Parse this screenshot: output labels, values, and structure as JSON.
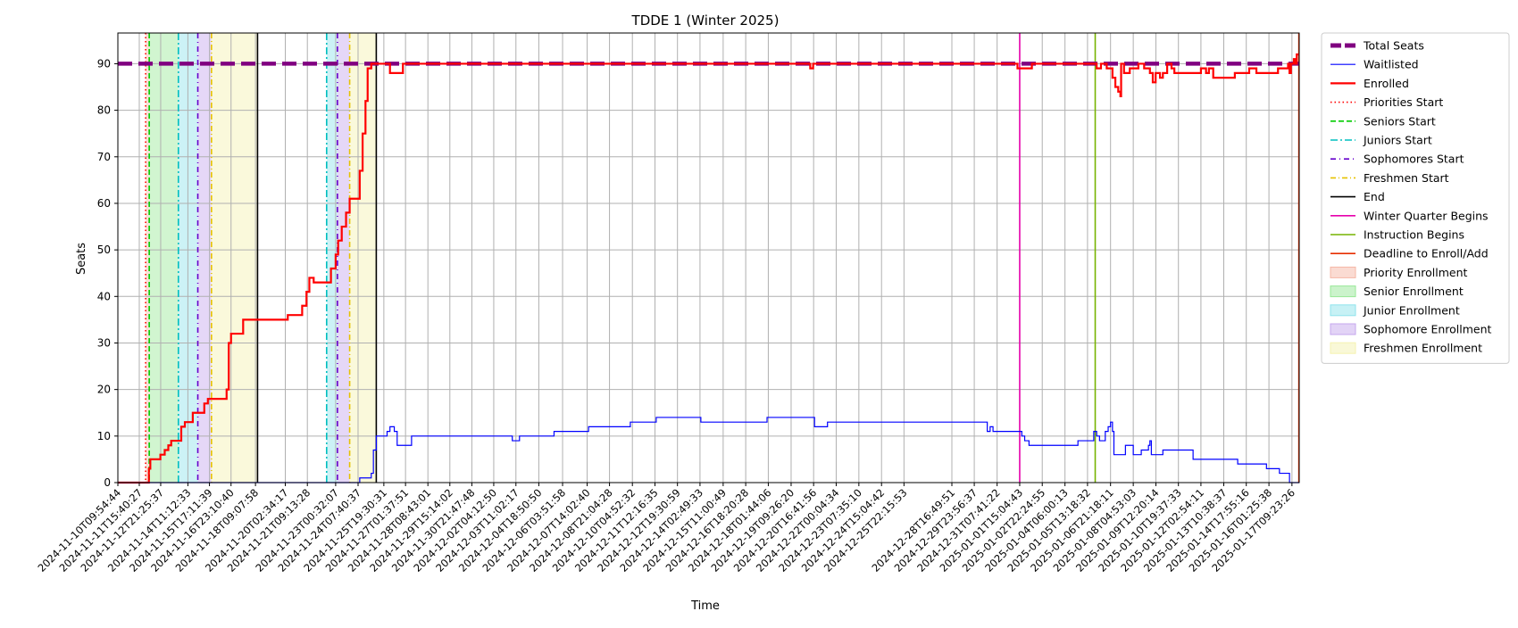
{
  "chart_data": {
    "type": "line",
    "title": "TDDE 1 (Winter 2025)",
    "xlabel": "Time",
    "ylabel": "Seats",
    "ylim": [
      0,
      96.6
    ],
    "yticks": [
      0,
      10,
      20,
      30,
      40,
      50,
      60,
      70,
      80,
      90
    ],
    "grid": true,
    "legend_position": "outside-right-top",
    "xlim": [
      "2024-11-10T09:54:44",
      "2025-01-17T19:30:00"
    ],
    "xtick_labels": [
      "2024-11-10T09:54:44",
      "2024-11-11T15:40:27",
      "2024-11-12T21:25:37",
      "2024-11-14T11:12:33",
      "2024-11-15T17:11:39",
      "2024-11-16T23:10:40",
      "2024-11-18T09:07:58",
      "2024-11-20T02:34:17",
      "2024-11-21T09:13:28",
      "2024-11-23T00:32:07",
      "2024-11-24T07:40:37",
      "2024-11-25T19:30:31",
      "2024-11-27T01:37:51",
      "2024-11-28T08:43:01",
      "2024-11-29T15:14:02",
      "2024-11-30T21:47:48",
      "2024-12-02T04:12:50",
      "2024-12-03T11:02:17",
      "2024-12-04T18:50:50",
      "2024-12-06T03:51:58",
      "2024-12-07T14:02:40",
      "2024-12-08T21:04:28",
      "2024-12-10T04:52:32",
      "2024-12-11T12:16:35",
      "2024-12-12T19:30:59",
      "2024-12-14T02:49:33",
      "2024-12-15T11:00:49",
      "2024-12-16T18:20:28",
      "2024-12-18T01:44:06",
      "2024-12-19T09:26:20",
      "2024-12-20T16:41:56",
      "2024-12-22T00:04:34",
      "2024-12-23T07:35:10",
      "2024-12-24T15:04:42",
      "2024-12-25T22:15:53",
      "2024-12-28T16:49:51",
      "2024-12-29T23:56:37",
      "2024-12-31T07:41:22",
      "2025-01-01T15:04:43",
      "2025-01-02T22:24:55",
      "2025-01-04T06:00:13",
      "2025-01-05T13:18:32",
      "2025-01-06T21:18:11",
      "2025-01-08T04:53:03",
      "2025-01-09T12:20:14",
      "2025-01-10T19:37:33",
      "2025-01-12T02:54:11",
      "2025-01-13T10:38:37",
      "2025-01-14T17:55:16",
      "2025-01-16T01:25:38",
      "2025-01-17T09:23:26"
    ],
    "total_seats": {
      "name": "Total Seats",
      "color": "#800080",
      "value": 90
    },
    "series": [
      {
        "name": "Enrolled",
        "color": "#ff0000",
        "points": [
          [
            "2024-11-10T09:54:44",
            0
          ],
          [
            "2024-11-12T02:00:00",
            0
          ],
          [
            "2024-11-12T05:00:00",
            3
          ],
          [
            "2024-11-12T07:00:00",
            5
          ],
          [
            "2024-11-12T18:00:00",
            5
          ],
          [
            "2024-11-12T21:00:00",
            6
          ],
          [
            "2024-11-13T03:00:00",
            7
          ],
          [
            "2024-11-13T08:00:00",
            8
          ],
          [
            "2024-11-13T12:00:00",
            9
          ],
          [
            "2024-11-13T22:00:00",
            9
          ],
          [
            "2024-11-14T02:00:00",
            12
          ],
          [
            "2024-11-14T07:00:00",
            13
          ],
          [
            "2024-11-14T14:00:00",
            13
          ],
          [
            "2024-11-14T18:00:00",
            15
          ],
          [
            "2024-11-15T07:00:00",
            15
          ],
          [
            "2024-11-15T10:00:00",
            17
          ],
          [
            "2024-11-15T15:00:00",
            18
          ],
          [
            "2024-11-16T14:00:00",
            18
          ],
          [
            "2024-11-16T17:00:00",
            20
          ],
          [
            "2024-11-16T20:00:00",
            30
          ],
          [
            "2024-11-16T23:10:40",
            32
          ],
          [
            "2024-11-17T12:00:00",
            32
          ],
          [
            "2024-11-17T16:00:00",
            35
          ],
          [
            "2024-11-19T22:00:00",
            35
          ],
          [
            "2024-11-20T02:34:17",
            35
          ],
          [
            "2024-11-20T06:00:00",
            36
          ],
          [
            "2024-11-20T22:00:00",
            36
          ],
          [
            "2024-11-21T02:00:00",
            38
          ],
          [
            "2024-11-21T08:00:00",
            41
          ],
          [
            "2024-11-21T12:00:00",
            44
          ],
          [
            "2024-11-21T18:00:00",
            43
          ],
          [
            "2024-11-22T15:00:00",
            43
          ],
          [
            "2024-11-22T18:00:00",
            46
          ],
          [
            "2024-11-23T00:32:07",
            49
          ],
          [
            "2024-11-23T04:00:00",
            52
          ],
          [
            "2024-11-23T09:00:00",
            55
          ],
          [
            "2024-11-23T15:00:00",
            58
          ],
          [
            "2024-11-23T20:00:00",
            61
          ],
          [
            "2024-11-24T07:40:37",
            61
          ],
          [
            "2024-11-24T10:00:00",
            67
          ],
          [
            "2024-11-24T14:00:00",
            75
          ],
          [
            "2024-11-24T18:00:00",
            82
          ],
          [
            "2024-11-24T21:00:00",
            89
          ],
          [
            "2024-11-25T02:00:00",
            90
          ],
          [
            "2024-11-25T19:30:31",
            90
          ],
          [
            "2024-11-26T04:00:00",
            88
          ],
          [
            "2024-11-26T18:00:00",
            88
          ],
          [
            "2024-11-26T22:00:00",
            90
          ],
          [
            "2024-12-20T10:00:00",
            90
          ],
          [
            "2024-12-20T12:00:00",
            89
          ],
          [
            "2024-12-20T16:00:00",
            90
          ],
          [
            "2025-01-01T10:00:00",
            90
          ],
          [
            "2025-01-01T12:00:00",
            89
          ],
          [
            "2025-01-02T06:00:00",
            89
          ],
          [
            "2025-01-02T08:00:00",
            90
          ],
          [
            "2025-01-06T00:00:00",
            90
          ],
          [
            "2025-01-06T02:00:00",
            89
          ],
          [
            "2025-01-06T08:00:00",
            90
          ],
          [
            "2025-01-06T12:00:00",
            90
          ],
          [
            "2025-01-06T16:00:00",
            89
          ],
          [
            "2025-01-07T00:00:00",
            87
          ],
          [
            "2025-01-07T04:00:00",
            85
          ],
          [
            "2025-01-07T08:00:00",
            84
          ],
          [
            "2025-01-07T11:00:00",
            83
          ],
          [
            "2025-01-07T12:00:00",
            90
          ],
          [
            "2025-01-07T16:00:00",
            88
          ],
          [
            "2025-01-08T00:00:00",
            89
          ],
          [
            "2025-01-08T08:00:00",
            89
          ],
          [
            "2025-01-08T12:00:00",
            90
          ],
          [
            "2025-01-08T20:00:00",
            89
          ],
          [
            "2025-01-09T04:00:00",
            88
          ],
          [
            "2025-01-09T08:00:00",
            86
          ],
          [
            "2025-01-09T12:00:00",
            88
          ],
          [
            "2025-01-09T18:00:00",
            87
          ],
          [
            "2025-01-09T22:00:00",
            88
          ],
          [
            "2025-01-10T04:00:00",
            90
          ],
          [
            "2025-01-10T10:00:00",
            89
          ],
          [
            "2025-01-10T14:00:00",
            88
          ],
          [
            "2025-01-11T22:00:00",
            88
          ],
          [
            "2025-01-12T02:54:11",
            89
          ],
          [
            "2025-01-12T10:00:00",
            88
          ],
          [
            "2025-01-12T14:00:00",
            89
          ],
          [
            "2025-01-12T20:00:00",
            87
          ],
          [
            "2025-01-13T22:00:00",
            87
          ],
          [
            "2025-01-14T02:00:00",
            88
          ],
          [
            "2025-01-14T17:55:16",
            88
          ],
          [
            "2025-01-14T22:00:00",
            89
          ],
          [
            "2025-01-15T08:00:00",
            88
          ],
          [
            "2025-01-16T10:00:00",
            88
          ],
          [
            "2025-01-16T14:00:00",
            89
          ],
          [
            "2025-01-17T02:00:00",
            89
          ],
          [
            "2025-01-17T04:00:00",
            90
          ],
          [
            "2025-01-17T06:00:00",
            88
          ],
          [
            "2025-01-17T08:00:00",
            90
          ],
          [
            "2025-01-17T12:00:00",
            91
          ],
          [
            "2025-01-17T14:00:00",
            90
          ],
          [
            "2025-01-17T16:00:00",
            92
          ],
          [
            "2025-01-17T19:30:00",
            92
          ]
        ]
      },
      {
        "name": "Waitlisted",
        "color": "#0000ff",
        "points": [
          [
            "2024-11-10T09:54:44",
            0
          ],
          [
            "2024-11-24T08:00:00",
            0
          ],
          [
            "2024-11-24T10:00:00",
            1
          ],
          [
            "2024-11-24T22:00:00",
            1
          ],
          [
            "2024-11-25T02:00:00",
            2
          ],
          [
            "2024-11-25T05:00:00",
            7
          ],
          [
            "2024-11-25T09:00:00",
            10
          ],
          [
            "2024-11-25T19:30:31",
            10
          ],
          [
            "2024-11-26T00:00:00",
            11
          ],
          [
            "2024-11-26T04:00:00",
            12
          ],
          [
            "2024-11-26T10:00:00",
            11
          ],
          [
            "2024-11-26T14:00:00",
            8
          ],
          [
            "2024-11-27T08:00:00",
            8
          ],
          [
            "2024-11-27T10:00:00",
            10
          ],
          [
            "2024-12-03T04:00:00",
            10
          ],
          [
            "2024-12-03T06:00:00",
            9
          ],
          [
            "2024-12-03T14:00:00",
            9
          ],
          [
            "2024-12-03T16:00:00",
            10
          ],
          [
            "2024-12-05T14:00:00",
            10
          ],
          [
            "2024-12-05T16:00:00",
            11
          ],
          [
            "2024-12-07T14:00:00",
            11
          ],
          [
            "2024-12-07T16:00:00",
            12
          ],
          [
            "2024-12-09T22:00:00",
            12
          ],
          [
            "2024-12-10T02:00:00",
            13
          ],
          [
            "2024-12-11T12:16:35",
            13
          ],
          [
            "2024-12-11T14:00:00",
            14
          ],
          [
            "2024-12-14T02:49:33",
            14
          ],
          [
            "2024-12-14T04:00:00",
            13
          ],
          [
            "2024-12-17T22:00:00",
            13
          ],
          [
            "2024-12-18T00:00:00",
            14
          ],
          [
            "2024-12-20T16:41:56",
            14
          ],
          [
            "2024-12-20T18:00:00",
            12
          ],
          [
            "2024-12-21T10:00:00",
            12
          ],
          [
            "2024-12-21T12:00:00",
            13
          ],
          [
            "2024-12-30T16:00:00",
            13
          ],
          [
            "2024-12-30T18:00:00",
            11
          ],
          [
            "2024-12-30T22:00:00",
            12
          ],
          [
            "2024-12-31T02:00:00",
            11
          ],
          [
            "2025-01-01T15:04:43",
            11
          ],
          [
            "2025-01-01T18:00:00",
            10
          ],
          [
            "2025-01-01T22:00:00",
            9
          ],
          [
            "2025-01-02T04:00:00",
            8
          ],
          [
            "2025-01-04T22:00:00",
            8
          ],
          [
            "2025-01-05T00:00:00",
            9
          ],
          [
            "2025-01-05T20:00:00",
            9
          ],
          [
            "2025-01-05T22:00:00",
            11
          ],
          [
            "2025-01-06T02:00:00",
            10
          ],
          [
            "2025-01-06T06:00:00",
            9
          ],
          [
            "2025-01-06T10:00:00",
            9
          ],
          [
            "2025-01-06T14:00:00",
            11
          ],
          [
            "2025-01-06T18:00:00",
            12
          ],
          [
            "2025-01-06T21:18:11",
            13
          ],
          [
            "2025-01-07T00:00:00",
            11
          ],
          [
            "2025-01-07T02:00:00",
            6
          ],
          [
            "2025-01-07T14:00:00",
            6
          ],
          [
            "2025-01-07T18:00:00",
            8
          ],
          [
            "2025-01-08T00:00:00",
            8
          ],
          [
            "2025-01-08T04:53:03",
            6
          ],
          [
            "2025-01-08T12:00:00",
            6
          ],
          [
            "2025-01-08T16:00:00",
            7
          ],
          [
            "2025-01-08T22:00:00",
            7
          ],
          [
            "2025-01-09T02:00:00",
            8
          ],
          [
            "2025-01-09T04:00:00",
            9
          ],
          [
            "2025-01-09T06:00:00",
            6
          ],
          [
            "2025-01-09T18:00:00",
            6
          ],
          [
            "2025-01-09T22:00:00",
            7
          ],
          [
            "2025-01-11T14:00:00",
            7
          ],
          [
            "2025-01-11T16:00:00",
            5
          ],
          [
            "2025-01-14T04:00:00",
            5
          ],
          [
            "2025-01-14T06:00:00",
            4
          ],
          [
            "2025-01-15T20:00:00",
            4
          ],
          [
            "2025-01-15T22:00:00",
            3
          ],
          [
            "2025-01-16T14:00:00",
            3
          ],
          [
            "2025-01-16T16:00:00",
            2
          ],
          [
            "2025-01-17T04:00:00",
            2
          ],
          [
            "2025-01-17T06:00:00",
            0
          ],
          [
            "2025-01-17T19:30:00",
            0
          ]
        ]
      }
    ],
    "enrollment_periods": [
      {
        "name": "Priority Enrollment",
        "color": "#f5b7a5",
        "ranges": [
          [
            "2024-11-12T00:30:00",
            "2024-11-12T05:30:00"
          ]
        ]
      },
      {
        "name": "Senior Enrollment",
        "color": "#98e897",
        "ranges": [
          [
            "2024-11-12T05:30:00",
            "2024-11-13T22:00:00"
          ]
        ]
      },
      {
        "name": "Junior Enrollment",
        "color": "#8fe3ec",
        "ranges": [
          [
            "2024-11-13T22:00:00",
            "2024-11-15T01:00:00"
          ],
          [
            "2024-11-22T12:00:00",
            "2024-11-23T03:00:00"
          ]
        ]
      },
      {
        "name": "Sophomore Enrollment",
        "color": "#c5a7ee",
        "ranges": [
          [
            "2024-11-15T01:00:00",
            "2024-11-15T20:00:00"
          ],
          [
            "2024-11-23T03:00:00",
            "2024-11-23T20:00:00"
          ]
        ]
      },
      {
        "name": "Freshmen Enrollment",
        "color": "#f4f2b0",
        "ranges": [
          [
            "2024-11-15T20:00:00",
            "2024-11-18T12:00:00"
          ],
          [
            "2024-11-23T20:00:00",
            "2024-11-25T09:00:00"
          ]
        ]
      }
    ],
    "markers": [
      {
        "name": "Priorities Start",
        "color": "#ff0000",
        "dash": "1.5,3",
        "times": [
          "2024-11-12T00:30:00"
        ]
      },
      {
        "name": "Seniors Start",
        "color": "#00cc00",
        "dash": "6,3",
        "times": [
          "2024-11-12T05:30:00"
        ]
      },
      {
        "name": "Juniors Start",
        "color": "#00bfbf",
        "dash": "8,3,2,3",
        "times": [
          "2024-11-13T22:00:00",
          "2024-11-22T12:00:00"
        ]
      },
      {
        "name": "Sophomores Start",
        "color": "#6600cc",
        "dash": "6,4,1,4",
        "times": [
          "2024-11-15T01:00:00",
          "2024-11-23T03:00:00"
        ]
      },
      {
        "name": "Freshmen Start",
        "color": "#e6c200",
        "dash": "6,3,1,3",
        "times": [
          "2024-11-15T20:00:00",
          "2024-11-23T20:00:00"
        ]
      },
      {
        "name": "End",
        "color": "#000000",
        "dash": "",
        "times": [
          "2024-11-18T12:00:00",
          "2024-11-25T09:00:00"
        ]
      },
      {
        "name": "Winter Quarter Begins",
        "color": "#e600ac",
        "dash": "",
        "times": [
          "2025-01-01T15:04:43"
        ]
      },
      {
        "name": "Instruction Begins",
        "color": "#77b300",
        "dash": "",
        "times": [
          "2025-01-06T00:00:00"
        ]
      },
      {
        "name": "Deadline to Enroll/Add",
        "color": "#e62e00",
        "dash": "",
        "times": [
          "2025-01-17T19:00:00"
        ]
      }
    ],
    "legend": [
      "Total Seats",
      "Waitlisted",
      "Enrolled",
      "Priorities Start",
      "Seniors Start",
      "Juniors Start",
      "Sophomores Start",
      "Freshmen Start",
      "End",
      "Winter Quarter Begins",
      "Instruction Begins",
      "Deadline to Enroll/Add",
      "Priority Enrollment",
      "Senior Enrollment",
      "Junior Enrollment",
      "Sophomore Enrollment",
      "Freshmen Enrollment"
    ]
  }
}
